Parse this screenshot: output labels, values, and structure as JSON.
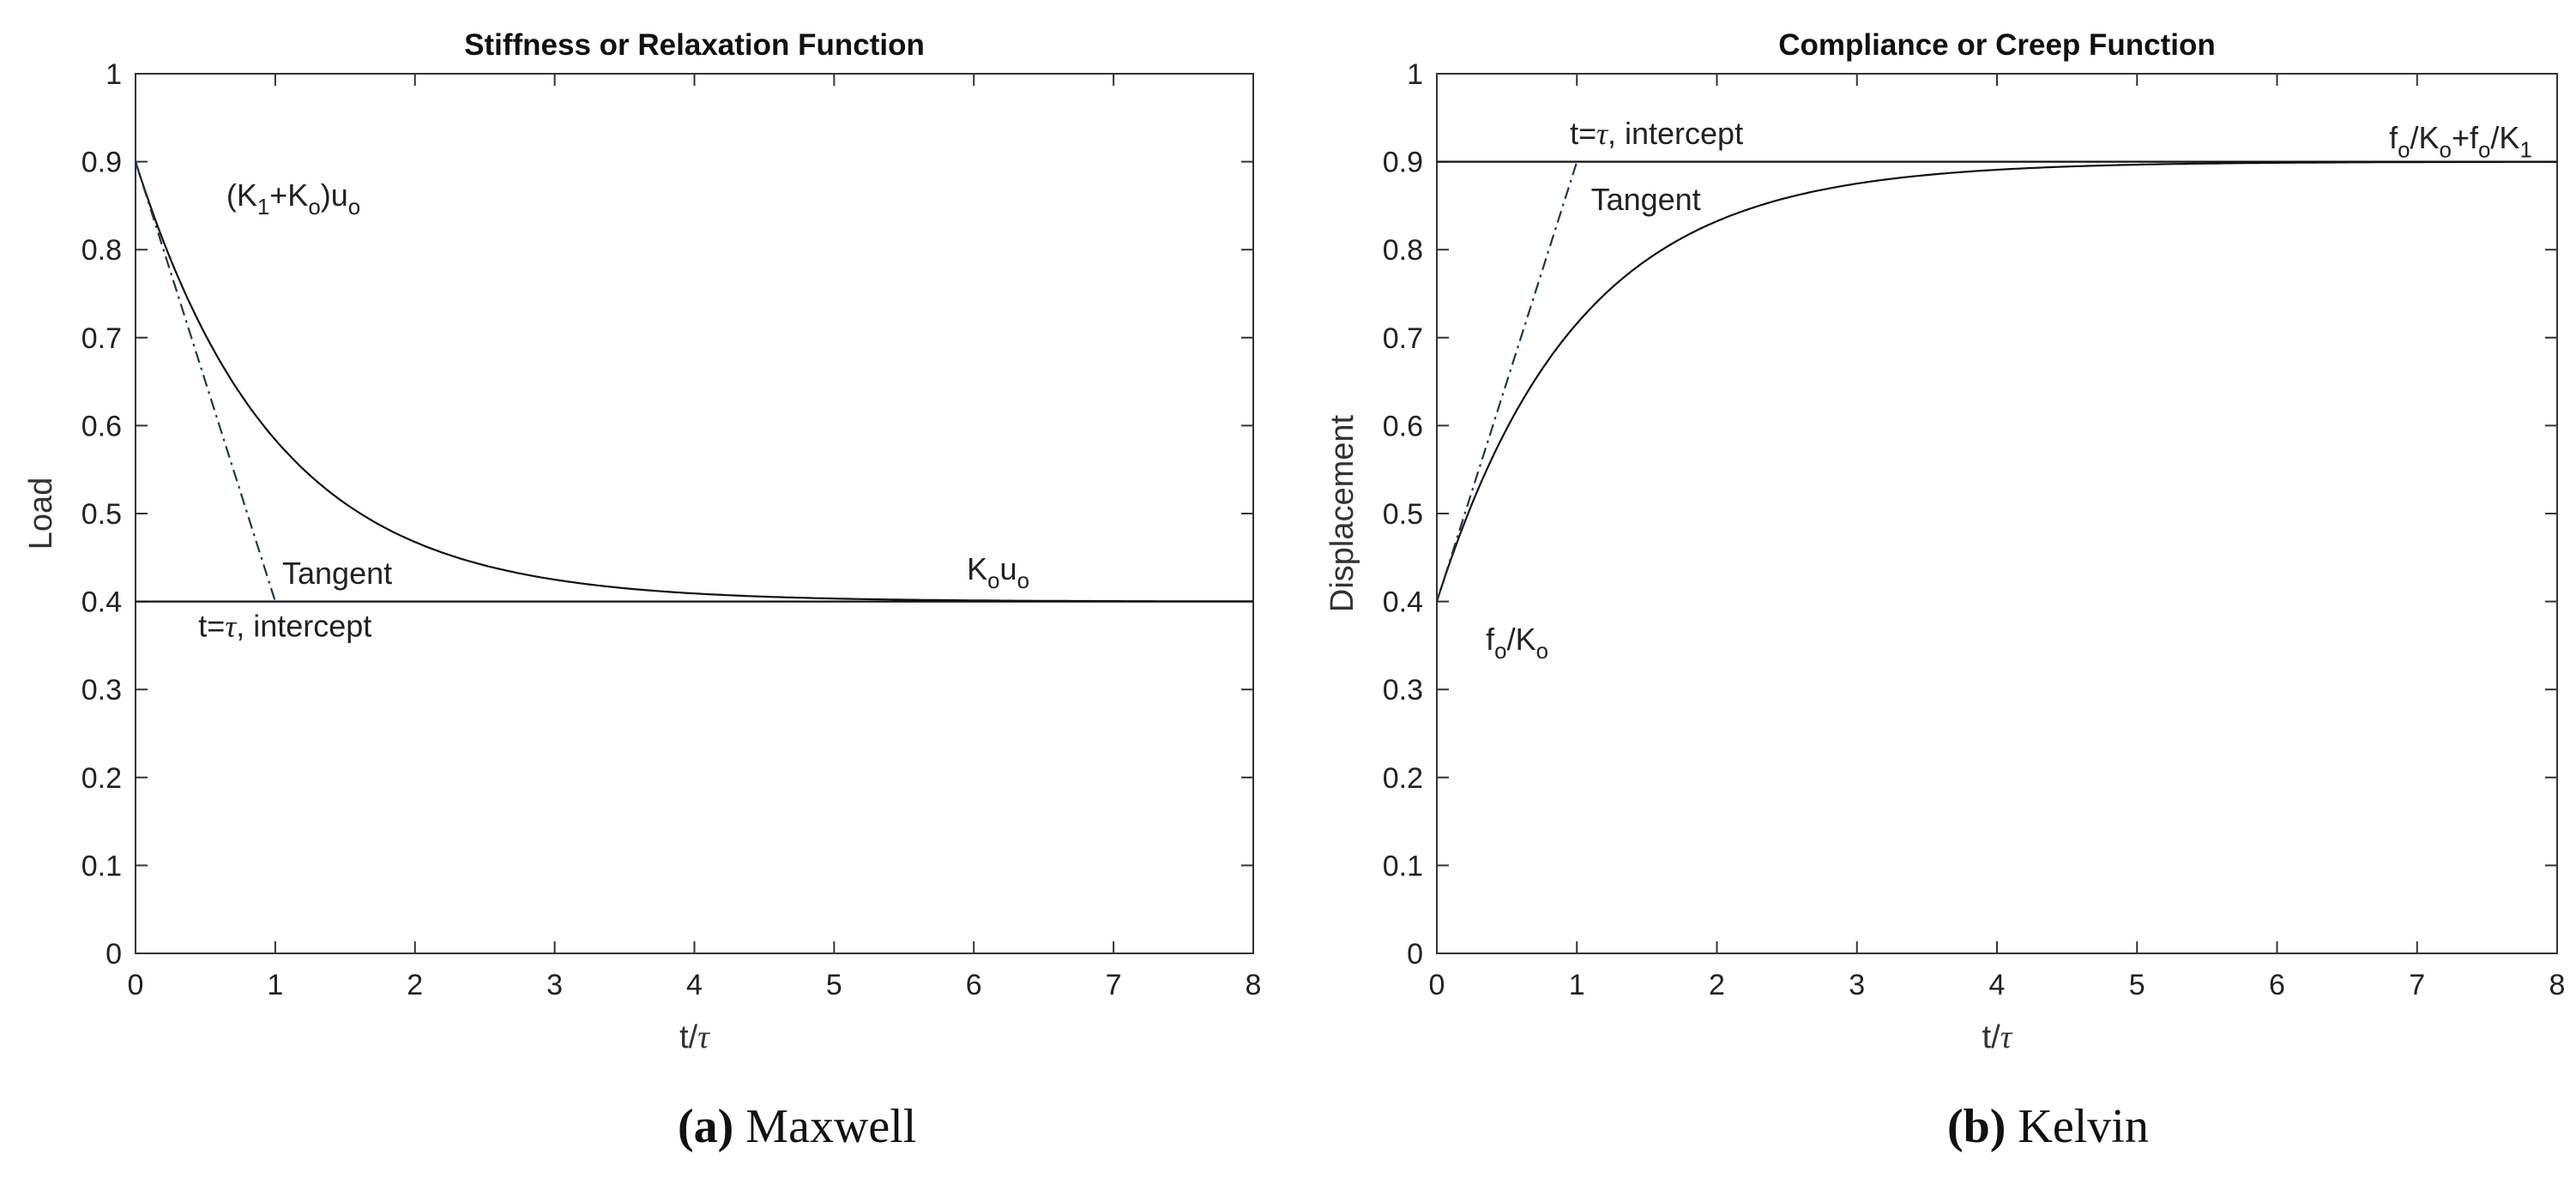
{
  "chart_data": [
    {
      "type": "line",
      "title": "Stiffness or Relaxation Function",
      "xlabel_main": "t/",
      "xlabel_symbol": "τ",
      "ylabel": "Load",
      "xlim": [
        0,
        8
      ],
      "ylim": [
        0,
        1
      ],
      "xticks": [
        "0",
        "1",
        "2",
        "3",
        "4",
        "5",
        "6",
        "7",
        "8"
      ],
      "yticks": [
        "0",
        "0.1",
        "0.2",
        "0.3",
        "0.4",
        "0.5",
        "0.6",
        "0.7",
        "0.8",
        "0.9",
        "1"
      ],
      "grid": false,
      "series": [
        {
          "name": "relaxation curve",
          "style": "solid",
          "equation": "y = 0.4 + 0.5*exp(-x)",
          "x_range": [
            0,
            8
          ]
        },
        {
          "name": "tangent",
          "style": "dash-dot",
          "x": [
            0,
            1
          ],
          "y": [
            0.9,
            0.4
          ]
        },
        {
          "name": "asymptote",
          "style": "solid",
          "x": [
            0,
            8
          ],
          "y": [
            0.4,
            0.4
          ]
        }
      ],
      "annotations": {
        "initial": {
          "p1": "(K",
          "s1": "1",
          "p2": "+K",
          "s2": "o",
          "p3": ")u",
          "s3": "o",
          "at": [
            0.65,
            0.85
          ]
        },
        "tangent": {
          "text": "Tangent",
          "at": [
            1.05,
            0.42
          ]
        },
        "intercept": {
          "prefix": "t=",
          "symbol": "τ",
          "suffix": ", intercept",
          "at": [
            0.45,
            0.36
          ]
        },
        "final": {
          "p1": "K",
          "s1": "o",
          "p2": "u",
          "s2": "o",
          "at": [
            5.95,
            0.425
          ]
        }
      }
    },
    {
      "type": "line",
      "title": "Compliance or Creep Function",
      "xlabel_main": "t/",
      "xlabel_symbol": "τ",
      "ylabel": "Displacement",
      "xlim": [
        0,
        8
      ],
      "ylim": [
        0,
        1
      ],
      "xticks": [
        "0",
        "1",
        "2",
        "3",
        "4",
        "5",
        "6",
        "7",
        "8"
      ],
      "yticks": [
        "0",
        "0.1",
        "0.2",
        "0.3",
        "0.4",
        "0.5",
        "0.6",
        "0.7",
        "0.8",
        "0.9",
        "1"
      ],
      "grid": false,
      "series": [
        {
          "name": "creep curve",
          "style": "solid",
          "equation": "y = 0.9 - 0.5*exp(-x)",
          "x_range": [
            0,
            8
          ]
        },
        {
          "name": "tangent",
          "style": "dash-dot",
          "x": [
            0,
            1
          ],
          "y": [
            0.4,
            0.9
          ]
        },
        {
          "name": "asymptote",
          "style": "solid",
          "x": [
            0,
            8
          ],
          "y": [
            0.9,
            0.9
          ]
        }
      ],
      "annotations": {
        "intercept": {
          "prefix": "t=",
          "symbol": "τ",
          "suffix": ", intercept",
          "at": [
            0.95,
            0.92
          ]
        },
        "tangent": {
          "text": "Tangent",
          "at": [
            1.1,
            0.845
          ]
        },
        "final": {
          "p1": "f",
          "s1": "o",
          "p2": "/K",
          "s2": "o",
          "p3": "+f",
          "s3": "o",
          "p4": "/K",
          "s4": "1",
          "at": [
            6.8,
            0.915
          ]
        },
        "initial": {
          "p1": "f",
          "s1": "o",
          "p2": "/K",
          "s2": "o",
          "at": [
            0.35,
            0.345
          ]
        }
      }
    }
  ],
  "captions": [
    {
      "label": "(a)",
      "text": " Maxwell"
    },
    {
      "label": "(b)",
      "text": " Kelvin"
    }
  ]
}
